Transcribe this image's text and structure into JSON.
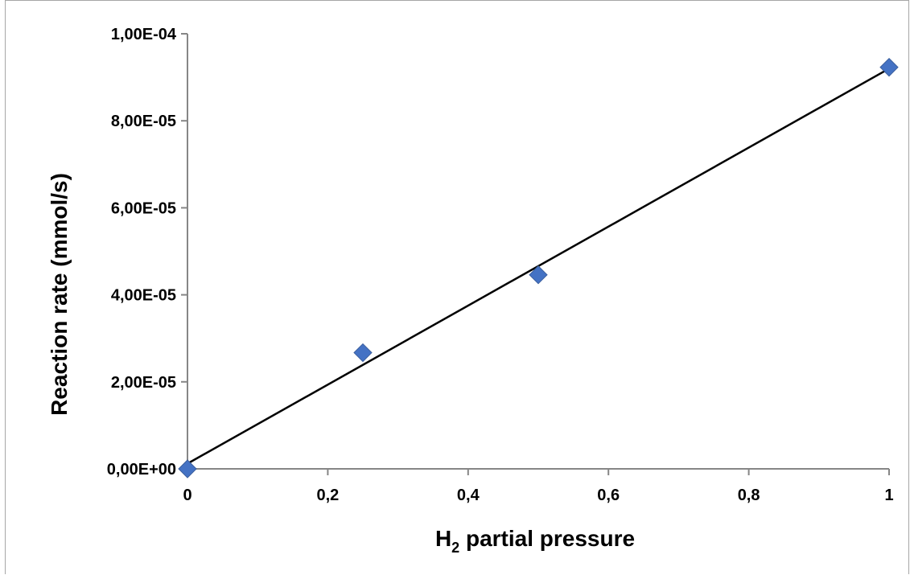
{
  "chart_data": {
    "type": "scatter",
    "title": "",
    "xlabel_main": "H",
    "xlabel_sub": "2",
    "xlabel_rest": " partial pressure",
    "ylabel": "Reaction rate (mmol/s)",
    "xlim": [
      0,
      1
    ],
    "ylim": [
      0,
      0.0001
    ],
    "x_ticks": [
      0,
      0.2,
      0.4,
      0.6,
      0.8,
      1
    ],
    "x_tick_labels": [
      "0",
      "0,2",
      "0,4",
      "0,6",
      "0,8",
      "1"
    ],
    "y_ticks": [
      0,
      2e-05,
      4e-05,
      6e-05,
      8e-05,
      0.0001
    ],
    "y_tick_labels": [
      "0,00E+00",
      "2,00E-05",
      "4,00E-05",
      "6,00E-05",
      "8,00E-05",
      "1,00E-04"
    ],
    "grid": false,
    "legend": "none",
    "series": [
      {
        "x": [
          0,
          0.25,
          0.5,
          1
        ],
        "y": [
          0,
          2.67e-05,
          4.46e-05,
          9.23e-05
        ],
        "marker": "diamond",
        "color": "#4472c4"
      }
    ],
    "trendline": {
      "type": "linear",
      "x": [
        0,
        1
      ],
      "y": [
        1.2e-06,
        9.2e-05
      ],
      "color": "#000000"
    }
  }
}
